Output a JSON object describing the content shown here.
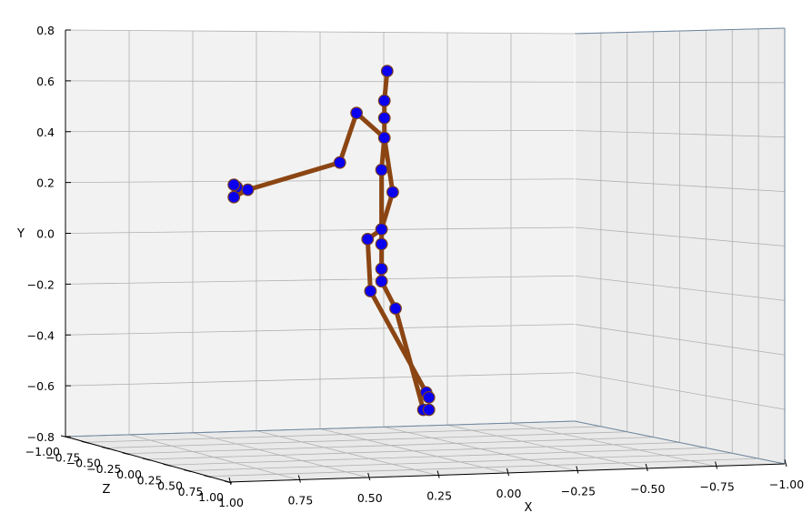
{
  "chart_data": {
    "type": "scatter",
    "subtype": "3d-pose-skeleton",
    "title": "",
    "xlabel": "X",
    "ylabel": "Y",
    "zlabel": "Z",
    "xlim": [
      1.0,
      -1.0
    ],
    "ylim": [
      -0.8,
      0.8
    ],
    "zlim": [
      -1.0,
      1.0
    ],
    "grid": true,
    "x_ticks": [
      "1.00",
      "0.75",
      "0.50",
      "0.25",
      "0.00",
      "−0.25",
      "−0.50",
      "−0.75",
      "−1.00"
    ],
    "y_ticks": [
      "−0.8",
      "−0.6",
      "−0.4",
      "−0.2",
      "0.0",
      "0.2",
      "0.4",
      "0.6",
      "0.8"
    ],
    "z_ticks": [
      "−1.00",
      "−0.75",
      "−0.50",
      "−0.25",
      "0.00",
      "0.25",
      "0.50",
      "0.75",
      "1.00"
    ],
    "colors": {
      "joint_fill": "#0a00f0",
      "joint_edge": "#7a3f1e",
      "bone": "#8b4513",
      "pane_left": "#f2f2f2",
      "pane_right": "#ececec",
      "pane_floor": "#e9e9e9",
      "grid": "#b0b0b0",
      "axis_line": "#6e86a0"
    },
    "joints": [
      {
        "id": "head_top",
        "x": 0.42,
        "y": 0.66
      },
      {
        "id": "head",
        "x": 0.43,
        "y": 0.54
      },
      {
        "id": "neck",
        "x": 0.43,
        "y": 0.47
      },
      {
        "id": "thorax",
        "x": 0.43,
        "y": 0.39
      },
      {
        "id": "l_shoulder",
        "x": 0.53,
        "y": 0.49
      },
      {
        "id": "l_elbow",
        "x": 0.59,
        "y": 0.29
      },
      {
        "id": "l_wrist",
        "x": 0.92,
        "y": 0.18
      },
      {
        "id": "l_hand_a",
        "x": 0.96,
        "y": 0.19
      },
      {
        "id": "l_hand_b",
        "x": 0.97,
        "y": 0.2
      },
      {
        "id": "l_hand_c",
        "x": 0.97,
        "y": 0.15
      },
      {
        "id": "spine",
        "x": 0.44,
        "y": 0.26
      },
      {
        "id": "r_shoulder",
        "x": 0.4,
        "y": 0.17
      },
      {
        "id": "pelvis",
        "x": 0.44,
        "y": 0.02
      },
      {
        "id": "l_hip",
        "x": 0.49,
        "y": -0.02
      },
      {
        "id": "r_hip",
        "x": 0.44,
        "y": -0.04
      },
      {
        "id": "hip_low",
        "x": 0.44,
        "y": -0.14
      },
      {
        "id": "l_knee",
        "x": 0.48,
        "y": -0.23
      },
      {
        "id": "r_knee",
        "x": 0.44,
        "y": -0.19
      },
      {
        "id": "r_knee_b",
        "x": 0.39,
        "y": -0.3
      },
      {
        "id": "l_ankle",
        "x": 0.28,
        "y": -0.64
      },
      {
        "id": "l_foot",
        "x": 0.27,
        "y": -0.66
      },
      {
        "id": "r_ankle",
        "x": 0.29,
        "y": -0.71
      },
      {
        "id": "r_foot",
        "x": 0.27,
        "y": -0.71
      }
    ],
    "bones": [
      [
        "head_top",
        "head"
      ],
      [
        "head",
        "neck"
      ],
      [
        "neck",
        "thorax"
      ],
      [
        "thorax",
        "l_shoulder"
      ],
      [
        "l_shoulder",
        "l_elbow"
      ],
      [
        "l_elbow",
        "l_wrist"
      ],
      [
        "l_wrist",
        "l_hand_a"
      ],
      [
        "l_hand_a",
        "l_hand_b"
      ],
      [
        "l_wrist",
        "l_hand_c"
      ],
      [
        "thorax",
        "spine"
      ],
      [
        "thorax",
        "r_shoulder"
      ],
      [
        "spine",
        "pelvis"
      ],
      [
        "r_shoulder",
        "pelvis"
      ],
      [
        "pelvis",
        "l_hip"
      ],
      [
        "pelvis",
        "r_hip"
      ],
      [
        "r_hip",
        "hip_low"
      ],
      [
        "hip_low",
        "r_knee"
      ],
      [
        "l_hip",
        "l_knee"
      ],
      [
        "r_knee",
        "r_knee_b"
      ],
      [
        "l_knee",
        "l_ankle"
      ],
      [
        "r_knee_b",
        "r_ankle"
      ],
      [
        "l_ankle",
        "l_foot"
      ],
      [
        "r_ankle",
        "r_foot"
      ]
    ]
  }
}
